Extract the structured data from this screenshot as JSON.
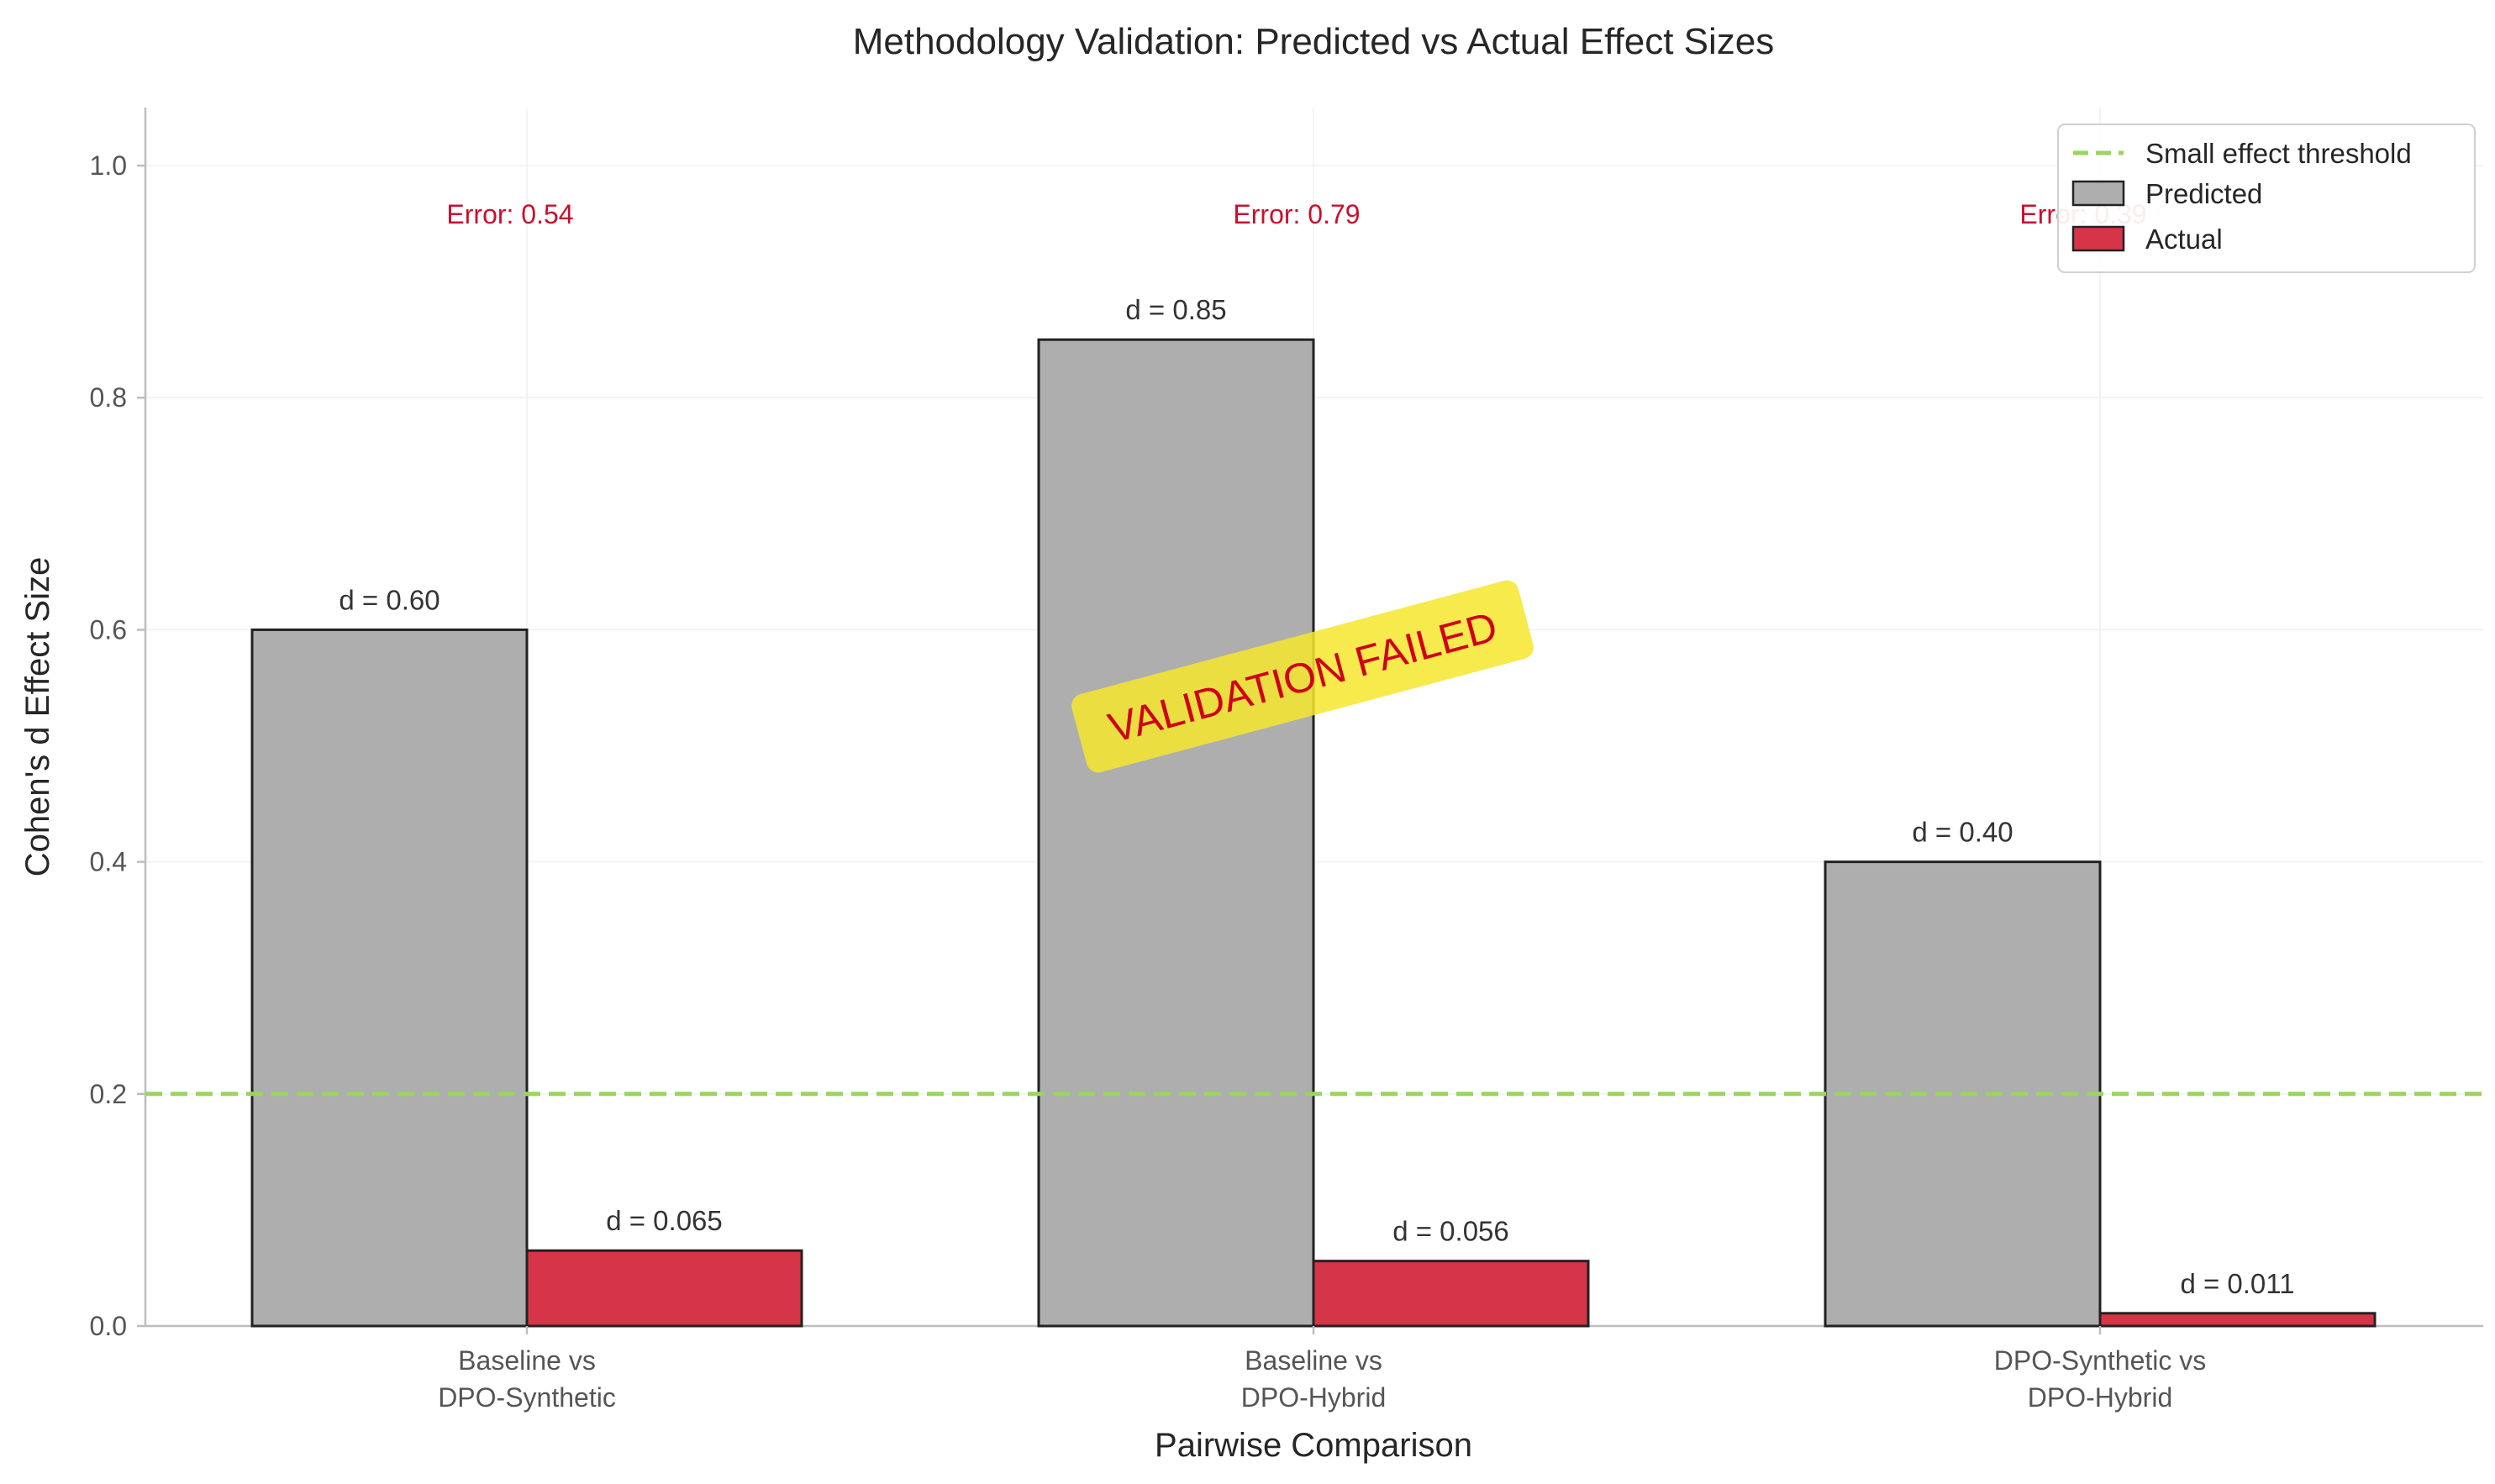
{
  "chart_data": {
    "type": "bar",
    "title": "Methodology Validation: Predicted vs Actual Effect Sizes",
    "xlabel": "Pairwise Comparison",
    "ylabel": "Cohen's d Effect Size",
    "ylim": [
      0,
      1.05
    ],
    "yticks": [
      "0.0",
      "0.2",
      "0.4",
      "0.6",
      "0.8",
      "1.0"
    ],
    "ytick_values": [
      0,
      0.2,
      0.4,
      0.6,
      0.8,
      1.0
    ],
    "categories": [
      [
        "Baseline vs",
        "DPO-Synthetic"
      ],
      [
        "Baseline vs",
        "DPO-Hybrid"
      ],
      [
        "DPO-Synthetic vs",
        "DPO-Hybrid"
      ]
    ],
    "series": [
      {
        "name": "Predicted",
        "color": "#aeaeae",
        "values": [
          0.6,
          0.85,
          0.4
        ],
        "labels": [
          "d = 0.60",
          "d = 0.85",
          "d = 0.40"
        ]
      },
      {
        "name": "Actual",
        "color": "#d63447",
        "values": [
          0.065,
          0.056,
          0.011
        ],
        "labels": [
          "d = 0.065",
          "d = 0.056",
          "d = 0.011"
        ]
      }
    ],
    "errors": [
      "Error: 0.54",
      "Error: 0.79",
      "Error: 0.39"
    ],
    "threshold": {
      "name": "Small effect threshold",
      "value": 0.2,
      "color": "#99d65c"
    },
    "annotation": "VALIDATION FAILED",
    "annotation_colors": {
      "text": "#d0021b",
      "box": "#f5e62e"
    },
    "legend_position": "top-right",
    "grid": true
  }
}
